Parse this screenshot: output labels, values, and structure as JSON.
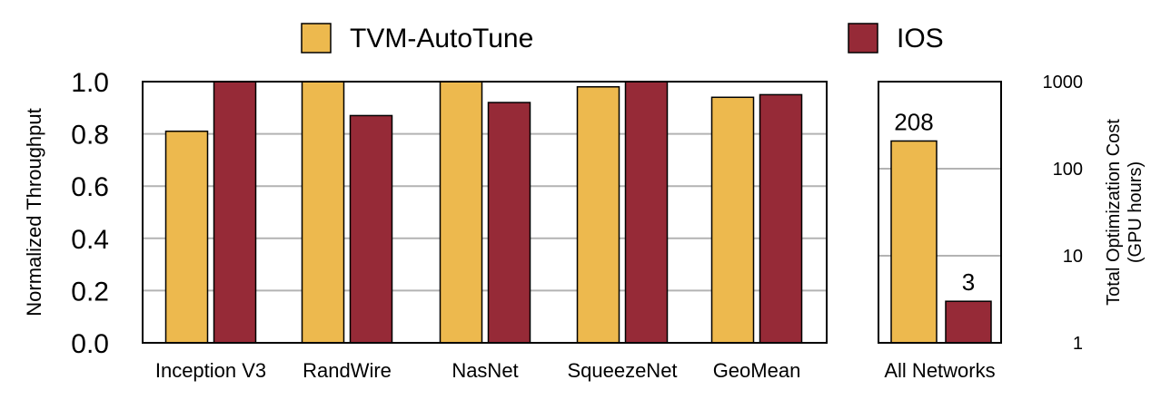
{
  "legend": {
    "placement": "top",
    "items": [
      {
        "label": "TVM-AutoTune",
        "color": "#EDB94E"
      },
      {
        "label": "IOS",
        "color": "#962A37"
      }
    ]
  },
  "chart_data": [
    {
      "type": "bar",
      "categories": [
        "Inception V3",
        "RandWire",
        "NasNet",
        "SqueezeNet",
        "GeoMean"
      ],
      "series": [
        {
          "name": "TVM-AutoTune",
          "values": [
            0.81,
            1.0,
            1.0,
            0.98,
            0.94
          ]
        },
        {
          "name": "IOS",
          "values": [
            1.0,
            0.87,
            0.92,
            1.0,
            0.95
          ]
        }
      ],
      "ylabel": "Normalized Throughput",
      "ylim": [
        0,
        1.0
      ],
      "yticks": [
        "0.0",
        "0.2",
        "0.4",
        "0.6",
        "0.8",
        "1.0"
      ],
      "grid": true
    },
    {
      "type": "bar",
      "categories": [
        "All Networks"
      ],
      "series": [
        {
          "name": "TVM-AutoTune",
          "values": [
            208
          ]
        },
        {
          "name": "IOS",
          "values": [
            3
          ]
        }
      ],
      "data_labels": [
        "208",
        "3"
      ],
      "ylabel_lines": [
        "Total Optimization Cost",
        "(GPU hours)"
      ],
      "yscale": "log",
      "ylim": [
        1,
        1000
      ],
      "yticks": [
        "1",
        "10",
        "100",
        "1000"
      ],
      "grid": true
    }
  ]
}
